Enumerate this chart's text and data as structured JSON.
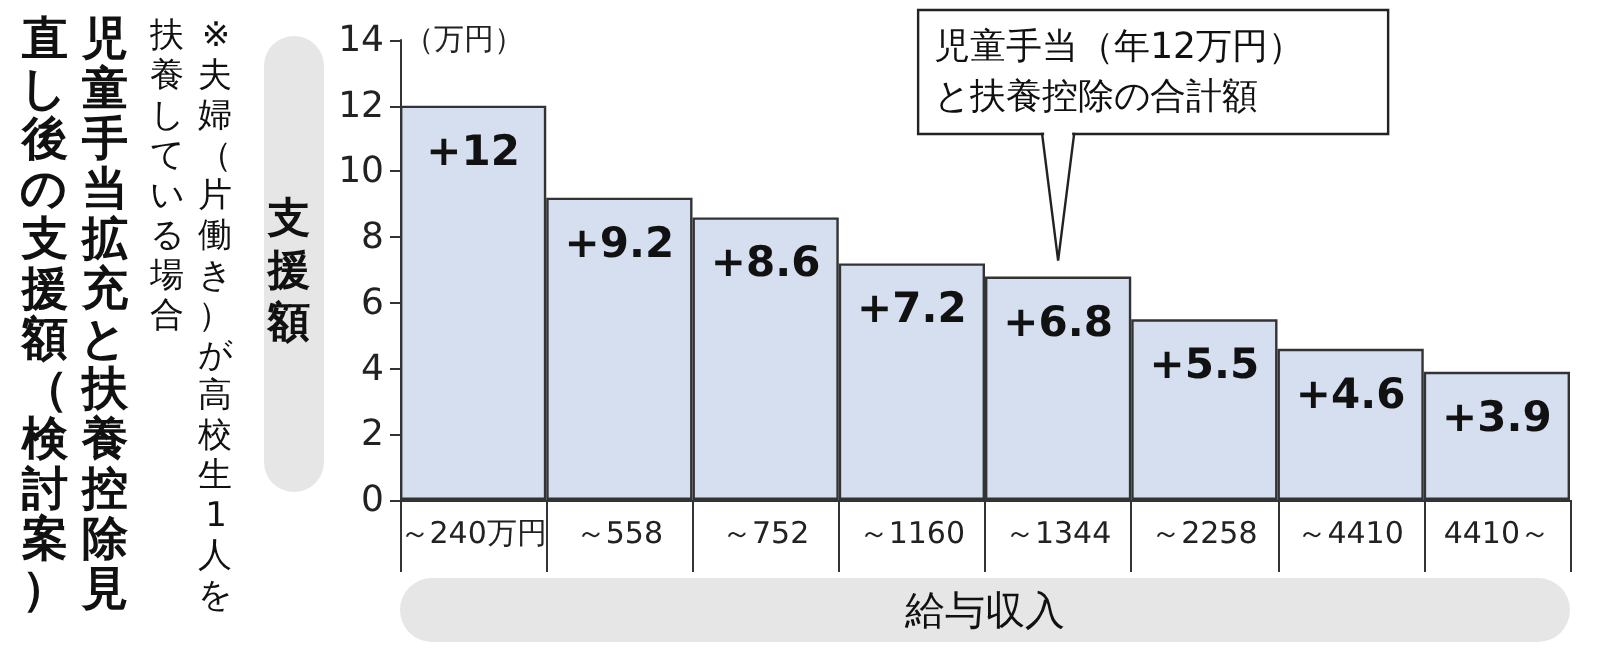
{
  "chart_data": {
    "type": "bar",
    "title": "児童手当拡充と扶養控除見直し後の支援額（検討案）",
    "subtitle": "※夫婦（片働き）が高校生1人を扶養している場合",
    "ylabel": "支援額",
    "xlabel": "給与収入",
    "categories": [
      "～240万円",
      "～558",
      "～752",
      "～1160",
      "～1344",
      "～2258",
      "～4410",
      "4410～"
    ],
    "values": [
      12,
      9.2,
      8.6,
      7.2,
      6.8,
      5.5,
      4.6,
      3.9
    ],
    "value_labels": [
      "+12",
      "+9.2",
      "+8.6",
      "+7.2",
      "+6.8",
      "+5.5",
      "+4.6",
      "+3.9"
    ],
    "color": "#d5dff0",
    "ylim": [
      0,
      14
    ],
    "yticks": [
      0,
      2,
      4,
      6,
      8,
      10,
      12,
      14
    ],
    "grid": false,
    "annotations": [
      "（万円）",
      {
        "text": "児童手当（年12万円）と扶養控除の合計額",
        "x": "～1344",
        "y": 6.8
      }
    ]
  }
}
